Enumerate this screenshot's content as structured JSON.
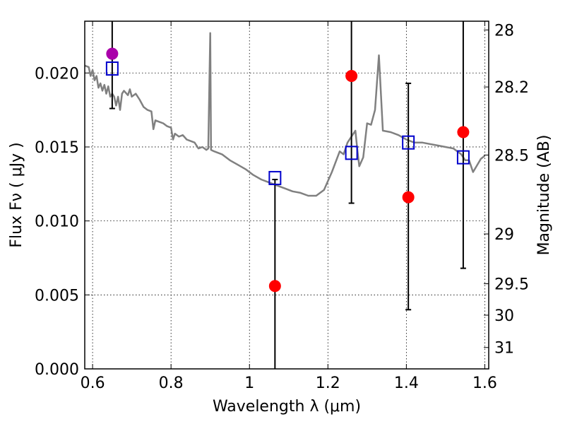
{
  "chart_data": {
    "type": "scatter",
    "title": "",
    "xlabel": "Wavelength  λ (μm)",
    "ylabel": "Flux  Fν  ( μJy )",
    "y2label": "Magnitude (AB)",
    "xlim": [
      0.58,
      1.61
    ],
    "ylim": [
      0.0,
      0.0235
    ],
    "grid": true,
    "xticks": [
      {
        "value": 0.6,
        "label": "0.6"
      },
      {
        "value": 0.8,
        "label": "0.8"
      },
      {
        "value": 1.0,
        "label": "1"
      },
      {
        "value": 1.2,
        "label": "1.2"
      },
      {
        "value": 1.4,
        "label": "1.4"
      },
      {
        "value": 1.6,
        "label": "1.6"
      }
    ],
    "yticks": [
      {
        "value": 0.0,
        "label": "0.000"
      },
      {
        "value": 0.005,
        "label": "0.005"
      },
      {
        "value": 0.01,
        "label": "0.010"
      },
      {
        "value": 0.015,
        "label": "0.015"
      },
      {
        "value": 0.02,
        "label": "0.020"
      }
    ],
    "y2ticks": [
      {
        "value": 28.0,
        "label": "28"
      },
      {
        "value": 28.2,
        "label": "28.2"
      },
      {
        "value": 28.5,
        "label": "28.5"
      },
      {
        "value": 29.0,
        "label": "29"
      },
      {
        "value": 29.5,
        "label": "29.5"
      },
      {
        "value": 30.0,
        "label": "30"
      },
      {
        "value": 31.0,
        "label": "31"
      }
    ],
    "series": [
      {
        "kind": "line",
        "color": "#808080",
        "points": [
          [
            0.58,
            0.0205
          ],
          [
            0.59,
            0.0204
          ],
          [
            0.595,
            0.0198
          ],
          [
            0.6,
            0.0202
          ],
          [
            0.605,
            0.0195
          ],
          [
            0.61,
            0.0198
          ],
          [
            0.615,
            0.019
          ],
          [
            0.62,
            0.0193
          ],
          [
            0.625,
            0.0188
          ],
          [
            0.63,
            0.0192
          ],
          [
            0.635,
            0.0186
          ],
          [
            0.64,
            0.0191
          ],
          [
            0.645,
            0.0184
          ],
          [
            0.65,
            0.0186
          ],
          [
            0.655,
            0.0184
          ],
          [
            0.66,
            0.0178
          ],
          [
            0.665,
            0.0184
          ],
          [
            0.67,
            0.0175
          ],
          [
            0.675,
            0.0186
          ],
          [
            0.68,
            0.0188
          ],
          [
            0.69,
            0.0185
          ],
          [
            0.695,
            0.0189
          ],
          [
            0.7,
            0.0184
          ],
          [
            0.71,
            0.0186
          ],
          [
            0.72,
            0.0182
          ],
          [
            0.73,
            0.0177
          ],
          [
            0.74,
            0.0175
          ],
          [
            0.75,
            0.0174
          ],
          [
            0.755,
            0.0162
          ],
          [
            0.76,
            0.0168
          ],
          [
            0.77,
            0.0167
          ],
          [
            0.78,
            0.0166
          ],
          [
            0.79,
            0.0164
          ],
          [
            0.8,
            0.0163
          ],
          [
            0.805,
            0.0155
          ],
          [
            0.81,
            0.0159
          ],
          [
            0.82,
            0.0157
          ],
          [
            0.83,
            0.0158
          ],
          [
            0.84,
            0.0155
          ],
          [
            0.85,
            0.0154
          ],
          [
            0.86,
            0.0153
          ],
          [
            0.87,
            0.0149
          ],
          [
            0.88,
            0.015
          ],
          [
            0.89,
            0.0148
          ],
          [
            0.895,
            0.0149
          ],
          [
            0.9,
            0.0227
          ],
          [
            0.902,
            0.0148
          ],
          [
            0.91,
            0.0147
          ],
          [
            0.93,
            0.0145
          ],
          [
            0.95,
            0.0141
          ],
          [
            0.97,
            0.0138
          ],
          [
            0.99,
            0.0135
          ],
          [
            1.01,
            0.0131
          ],
          [
            1.03,
            0.0128
          ],
          [
            1.05,
            0.0126
          ],
          [
            1.07,
            0.0124
          ],
          [
            1.09,
            0.0122
          ],
          [
            1.11,
            0.012
          ],
          [
            1.13,
            0.0119
          ],
          [
            1.15,
            0.0117
          ],
          [
            1.17,
            0.0117
          ],
          [
            1.19,
            0.0121
          ],
          [
            1.21,
            0.0133
          ],
          [
            1.23,
            0.0147
          ],
          [
            1.24,
            0.0145
          ],
          [
            1.25,
            0.0153
          ],
          [
            1.26,
            0.0157
          ],
          [
            1.27,
            0.0161
          ],
          [
            1.275,
            0.0148
          ],
          [
            1.28,
            0.0137
          ],
          [
            1.29,
            0.0143
          ],
          [
            1.3,
            0.0166
          ],
          [
            1.31,
            0.0165
          ],
          [
            1.32,
            0.0175
          ],
          [
            1.33,
            0.0212
          ],
          [
            1.34,
            0.0161
          ],
          [
            1.36,
            0.016
          ],
          [
            1.38,
            0.0158
          ],
          [
            1.4,
            0.0155
          ],
          [
            1.42,
            0.0153
          ],
          [
            1.44,
            0.0153
          ],
          [
            1.46,
            0.0152
          ],
          [
            1.48,
            0.0151
          ],
          [
            1.5,
            0.015
          ],
          [
            1.52,
            0.0149
          ],
          [
            1.54,
            0.0145
          ],
          [
            1.55,
            0.0141
          ],
          [
            1.56,
            0.0141
          ],
          [
            1.57,
            0.0133
          ],
          [
            1.59,
            0.0142
          ],
          [
            1.6,
            0.0144
          ]
        ]
      },
      {
        "kind": "observed",
        "color": "#ff0000",
        "points": [
          {
            "x": 1.065,
            "y": 0.0056,
            "ylow": 0.0,
            "yhigh": 0.0128
          },
          {
            "x": 1.26,
            "y": 0.0198,
            "ylow": 0.0112,
            "yhigh": 0.0235
          },
          {
            "x": 1.405,
            "y": 0.0116,
            "ylow": 0.004,
            "yhigh": 0.0193
          },
          {
            "x": 1.545,
            "y": 0.016,
            "ylow": 0.0068,
            "yhigh": 0.0235
          }
        ]
      },
      {
        "kind": "observed-highlight",
        "color": "#aa00aa",
        "points": [
          {
            "x": 0.65,
            "y": 0.0213,
            "ylow": 0.0176,
            "yhigh": 0.0235
          }
        ]
      },
      {
        "kind": "model-squares",
        "color": "#0000cc",
        "points": [
          {
            "x": 0.65,
            "y": 0.0203
          },
          {
            "x": 1.065,
            "y": 0.0129
          },
          {
            "x": 1.26,
            "y": 0.0146
          },
          {
            "x": 1.405,
            "y": 0.0153
          },
          {
            "x": 1.545,
            "y": 0.0143
          }
        ]
      }
    ]
  }
}
